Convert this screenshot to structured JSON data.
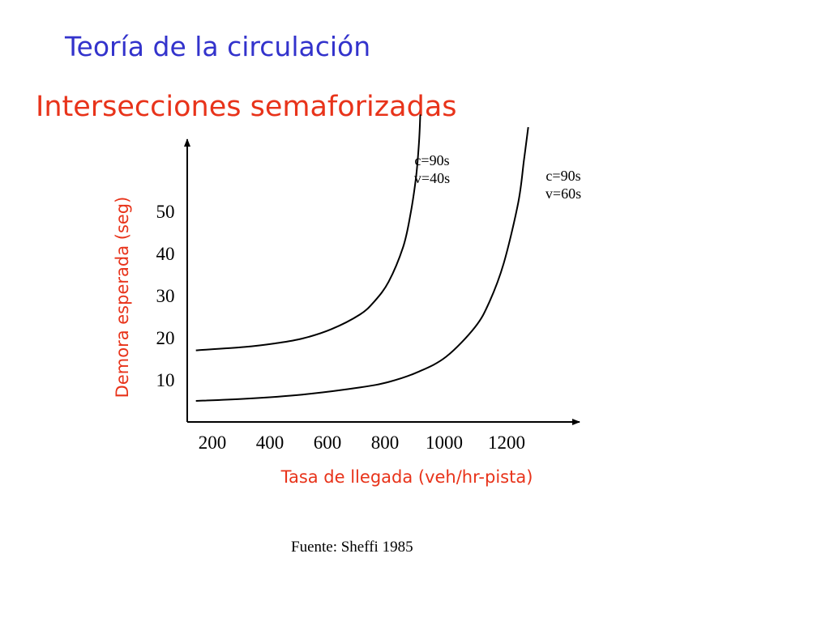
{
  "slide": {
    "title": "Teoría de la circulación",
    "subtitle": "Intersecciones semaforizadas",
    "source": "Fuente: Sheffi 1985"
  },
  "colors": {
    "title": "#3333cc",
    "subtitle": "#e8331a",
    "axis_label": "#e8331a",
    "axis": "#000000",
    "curve": "#000000"
  },
  "chart_data": {
    "type": "line",
    "xlabel": "Tasa de llegada (veh/hr-pista)",
    "ylabel": "Demora esperada (seg)",
    "x_ticks": [
      "200",
      "400",
      "600",
      "800",
      "1000",
      "1200"
    ],
    "y_ticks": [
      "10",
      "20",
      "30",
      "40",
      "50"
    ],
    "xlim": [
      0,
      1330
    ],
    "ylim": [
      0,
      73
    ],
    "grid": false,
    "series": [
      {
        "name": "c=90s v=40s",
        "annotation": [
          "c=90s",
          "v=40s"
        ],
        "x": [
          30,
          200,
          300,
          400,
          500,
          600,
          650,
          700,
          750,
          775,
          795,
          805,
          810
        ],
        "y": [
          17,
          17.8,
          18.6,
          19.8,
          22,
          25.5,
          28.6,
          33.3,
          41.5,
          49,
          58,
          66,
          73
        ]
      },
      {
        "name": "c=90s v=60s",
        "annotation": [
          "c=90s",
          "v=60s"
        ],
        "x": [
          30,
          200,
          400,
          600,
          700,
          800,
          900,
          1000,
          1050,
          1100,
          1150,
          1170,
          1185
        ],
        "y": [
          5,
          5.5,
          6.5,
          8.2,
          9.5,
          11.8,
          15.5,
          22.5,
          28.5,
          37.7,
          52,
          62,
          70
        ]
      }
    ]
  }
}
